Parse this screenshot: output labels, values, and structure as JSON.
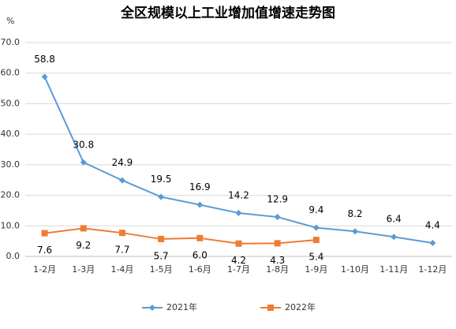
{
  "chart_data": {
    "type": "line",
    "title": "全区规模以上工业增加值增速走势图",
    "y_label": "%",
    "categories": [
      "1-2月",
      "1-3月",
      "1-4月",
      "1-5月",
      "1-6月",
      "1-7月",
      "1-8月",
      "1-9月",
      "1-10月",
      "1-11月",
      "1-12月"
    ],
    "series": [
      {
        "name": "2021年",
        "color": "#5b9bd5",
        "marker": "diamond",
        "values": [
          58.8,
          30.8,
          24.9,
          19.5,
          16.9,
          14.2,
          12.9,
          9.4,
          8.2,
          6.4,
          4.4
        ],
        "value_labels": [
          "58.8",
          "30.8",
          "24.9",
          "19.5",
          "16.9",
          "14.2",
          "12.9",
          "9.4",
          "8.2",
          "6.4",
          "4.4"
        ]
      },
      {
        "name": "2022年",
        "color": "#ed7d31",
        "marker": "square",
        "values": [
          7.6,
          9.2,
          7.7,
          5.7,
          6.0,
          4.2,
          4.3,
          5.4,
          null,
          null,
          null
        ],
        "value_labels": [
          "7.6",
          "9.2",
          "7.7",
          "5.7",
          "6.0",
          "4.2",
          "4.3",
          "5.4",
          null,
          null,
          null
        ]
      }
    ],
    "ylim": [
      0,
      70
    ],
    "yticks": [
      {
        "value": 0,
        "label": "0.0"
      },
      {
        "value": 10,
        "label": "10.0"
      },
      {
        "value": 20,
        "label": "20.0"
      },
      {
        "value": 30,
        "label": "30.0"
      },
      {
        "value": 40,
        "label": "40.0"
      },
      {
        "value": 50,
        "label": "50.0"
      },
      {
        "value": 60,
        "label": "60.0"
      },
      {
        "value": 70,
        "label": "70.0"
      }
    ],
    "grid": true,
    "legend": "bottom"
  }
}
